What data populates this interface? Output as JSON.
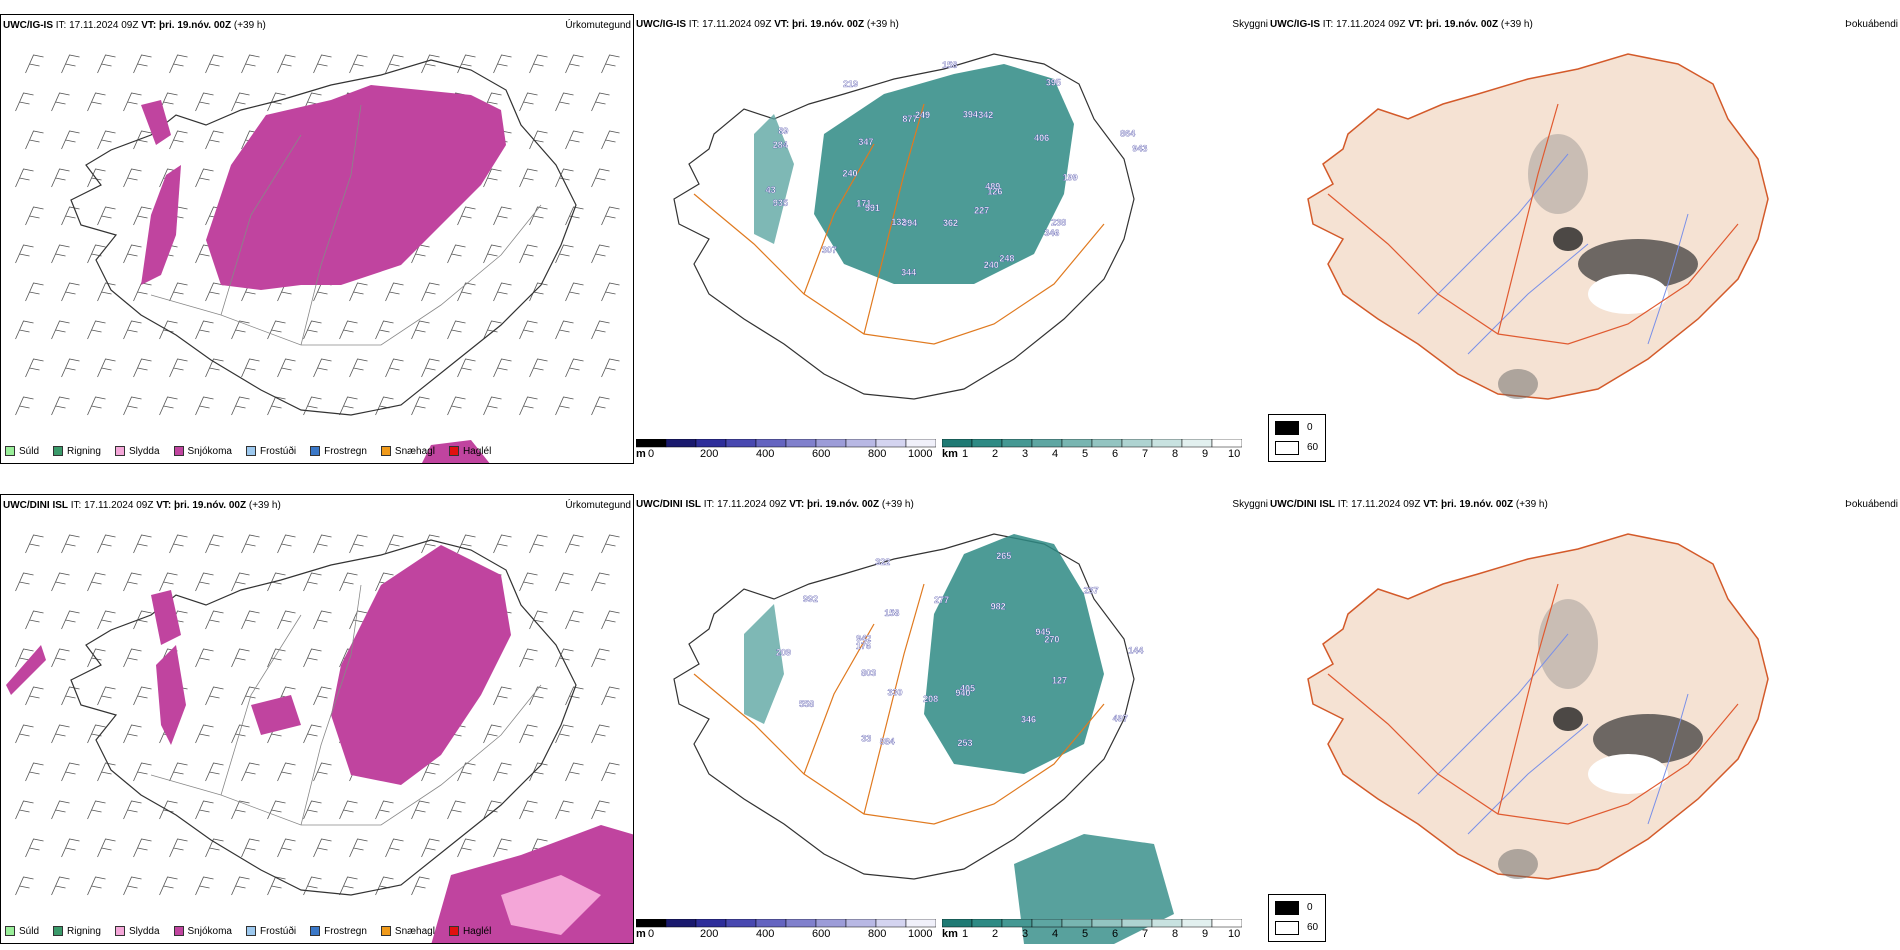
{
  "rows": [
    {
      "model": "UWC/IG-IS",
      "it_label": "IT:",
      "it_value": "17.11.2024 09Z",
      "vt_label": "VT:",
      "vt_value": "þri. 19.nóv. 00Z",
      "lead": "(+39 h)"
    },
    {
      "model": "UWC/DINI ISL",
      "it_label": "IT:",
      "it_value": "17.11.2024 09Z",
      "vt_label": "VT:",
      "vt_value": "þri. 19.nóv. 00Z",
      "lead": "(+39 h)"
    }
  ],
  "panel_titles": {
    "precip": "Úrkomutegund",
    "cloud": "Skyggni",
    "fog": "Þokuábendi"
  },
  "precip_legend": [
    {
      "label": "Súld",
      "color": "#99ee99"
    },
    {
      "label": "Rigning",
      "color": "#3a9a6a"
    },
    {
      "label": "Slydda",
      "color": "#f4a6d8"
    },
    {
      "label": "Snjókoma",
      "color": "#c0449f"
    },
    {
      "label": "Frostúði",
      "color": "#9cc8ee"
    },
    {
      "label": "Frostregn",
      "color": "#3a78c8"
    },
    {
      "label": "Snæhagl",
      "color": "#f09a1a"
    },
    {
      "label": "Haglél",
      "color": "#e01010"
    }
  ],
  "height_scale": {
    "unit": "m",
    "ticks": [
      "0",
      "200",
      "400",
      "600",
      "800",
      "1000"
    ],
    "colors": [
      "#000000",
      "#1a1a6e",
      "#2e2e9a",
      "#4848b0",
      "#6464c0",
      "#8080cc",
      "#9c9cd8",
      "#b8b8e4",
      "#d4d4f0",
      "#f0f0fa"
    ]
  },
  "visibility_scale": {
    "unit": "km",
    "ticks": [
      "1",
      "2",
      "3",
      "4",
      "5",
      "6",
      "7",
      "8",
      "9",
      "10"
    ],
    "colors": [
      "#1f7a74",
      "#2e8a84",
      "#459893",
      "#5ea6a2",
      "#78b5b1",
      "#93c4c1",
      "#aed3d1",
      "#c8e2e0",
      "#e2f0ef",
      "#ffffff"
    ]
  },
  "fog_legend": [
    {
      "label": "0",
      "color": "#000000"
    },
    {
      "label": "60",
      "color": "#ffffff"
    }
  ],
  "cloud_labels_top": [
    "489",
    "591",
    "394",
    "248",
    "284",
    "864",
    "394",
    "877",
    "238",
    "935",
    "395",
    "362",
    "347",
    "199",
    "307",
    "158",
    "227",
    "240",
    "406",
    "344",
    "219",
    "126",
    "171",
    "342",
    "240",
    "89",
    "943",
    "132",
    "249",
    "346",
    "43"
  ],
  "cloud_labels_bottom": [
    "405",
    "176",
    "945",
    "884",
    "322",
    "497",
    "803",
    "982",
    "253",
    "992",
    "144",
    "330",
    "277",
    "346",
    "209",
    "237",
    "208",
    "158",
    "127",
    "558",
    "265",
    "940",
    "942",
    "270",
    "33"
  ]
}
